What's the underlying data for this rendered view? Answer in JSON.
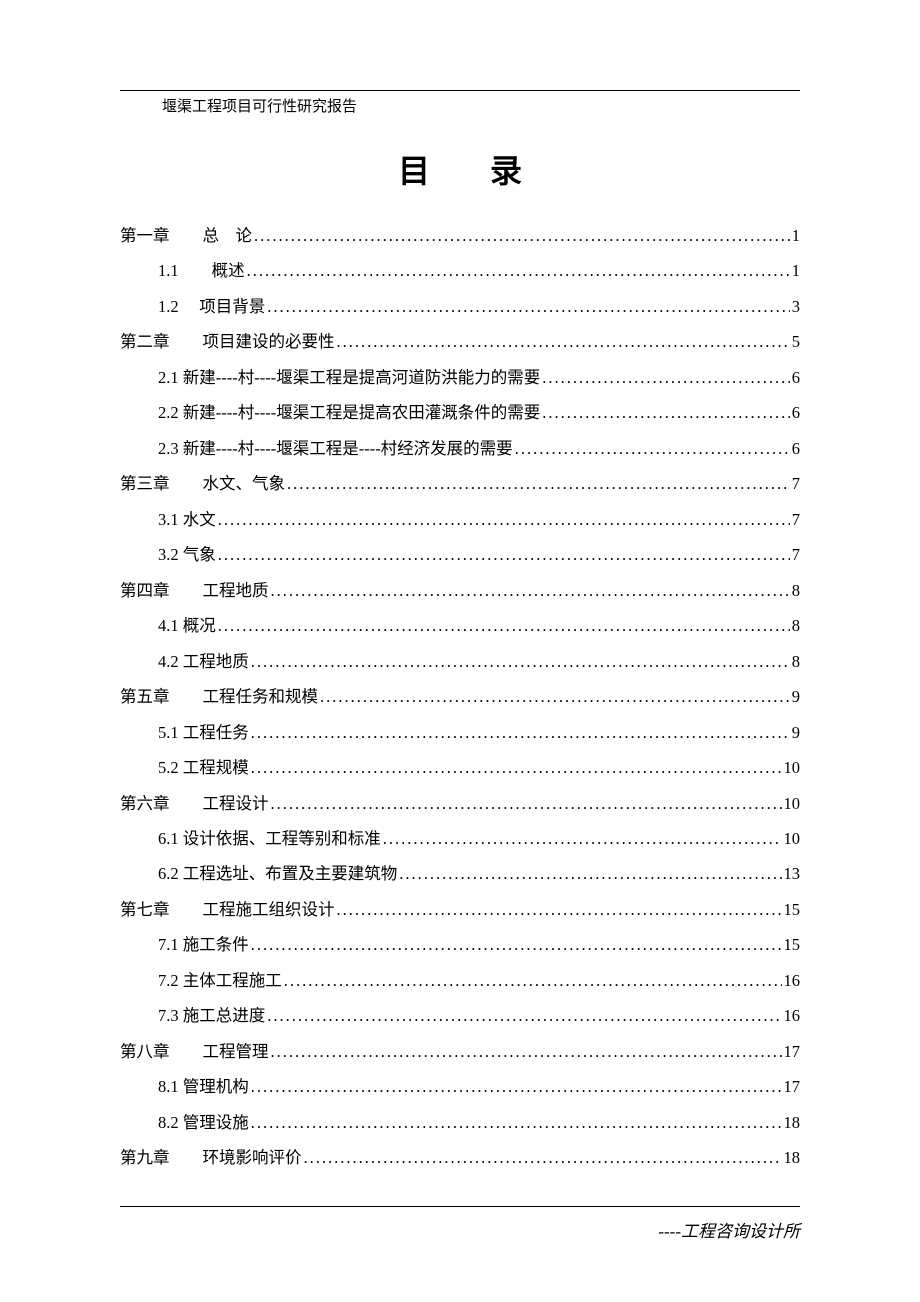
{
  "header": "堰渠工程项目可行性研究报告",
  "title": "目录",
  "footer": "----工程咨询设计所",
  "toc": [
    {
      "label": "第一章　　总　论",
      "page": "1",
      "level": 1
    },
    {
      "label": "1.1　　概述",
      "page": "1",
      "level": 2
    },
    {
      "label": "1.2　 项目背景",
      "page": "3",
      "level": 2
    },
    {
      "label": "第二章　　项目建设的必要性",
      "page": "5",
      "level": 1
    },
    {
      "label": "2.1  新建----村----堰渠工程是提高河道防洪能力的需要",
      "page": "6",
      "level": 2
    },
    {
      "label": "2.2 新建----村----堰渠工程是提高农田灌溉条件的需要",
      "page": "6",
      "level": 2
    },
    {
      "label": "2.3 新建----村----堰渠工程是----村经济发展的需要",
      "page": "6",
      "level": 2
    },
    {
      "label": "第三章　　水文、气象",
      "page": "7",
      "level": 1
    },
    {
      "label": "3.1 水文",
      "page": "7",
      "level": 2
    },
    {
      "label": "3.2 气象",
      "page": "7",
      "level": 2
    },
    {
      "label": "第四章　　工程地质",
      "page": "8",
      "level": 1
    },
    {
      "label": "4.1  概况",
      "page": "8",
      "level": 2
    },
    {
      "label": "4.2 工程地质",
      "page": "8",
      "level": 2
    },
    {
      "label": "第五章　　工程任务和规模",
      "page": "9",
      "level": 1
    },
    {
      "label": "5.1 工程任务",
      "page": "9",
      "level": 2
    },
    {
      "label": "5.2 工程规模",
      "page": "10",
      "level": 2
    },
    {
      "label": "第六章　　工程设计",
      "page": "10",
      "level": 1
    },
    {
      "label": "6.1 设计依据、工程等别和标准",
      "page": "10",
      "level": 2
    },
    {
      "label": "6.2 工程选址、布置及主要建筑物",
      "page": "13",
      "level": 2
    },
    {
      "label": "第七章　　工程施工组织设计",
      "page": "15",
      "level": 1
    },
    {
      "label": "7.1 施工条件",
      "page": "15",
      "level": 2
    },
    {
      "label": "7.2 主体工程施工",
      "page": "16",
      "level": 2
    },
    {
      "label": "7.3 施工总进度",
      "page": "16",
      "level": 2
    },
    {
      "label": "第八章　　工程管理",
      "page": "17",
      "level": 1
    },
    {
      "label": "8.1 管理机构",
      "page": "17",
      "level": 2
    },
    {
      "label": "8.2 管理设施",
      "page": "18",
      "level": 2
    },
    {
      "label": "第九章　　环境影响评价",
      "page": "18",
      "level": 1
    }
  ]
}
